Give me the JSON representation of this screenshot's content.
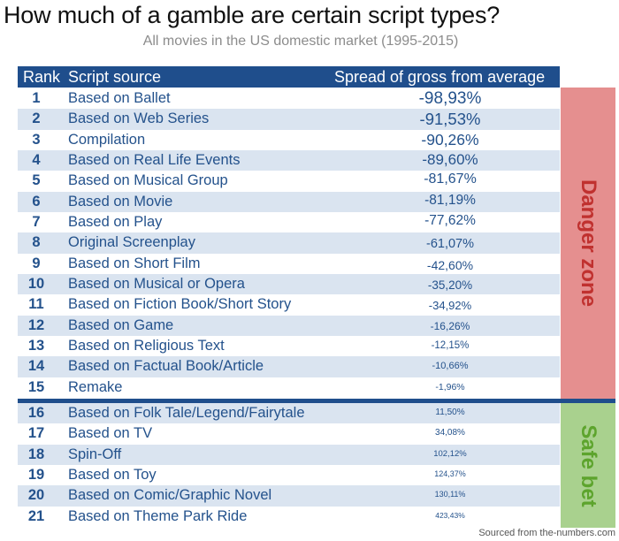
{
  "title": "How much of a gamble are certain script types?",
  "subtitle": "All movies in the US domestic market (1995-2015)",
  "header": {
    "rank": "Rank",
    "source": "Script source",
    "spread": "Spread of gross from average"
  },
  "danger_label": "Danger zone",
  "safe_label": "Safe bet",
  "source_note": "Sourced from the-numbers.com",
  "rows": [
    {
      "rank": "1",
      "source": "Based on Ballet",
      "spread": "-98,93%"
    },
    {
      "rank": "2",
      "source": "Based on Web Series",
      "spread": "-91,53%"
    },
    {
      "rank": "3",
      "source": "Compilation",
      "spread": "-90,26%"
    },
    {
      "rank": "4",
      "source": "Based on Real Life Events",
      "spread": "-89,60%"
    },
    {
      "rank": "5",
      "source": "Based on Musical Group",
      "spread": "-81,67%"
    },
    {
      "rank": "6",
      "source": "Based on Movie",
      "spread": "-81,19%"
    },
    {
      "rank": "7",
      "source": "Based on Play",
      "spread": "-77,62%"
    },
    {
      "rank": "8",
      "source": "Original Screenplay",
      "spread": "-61,07%"
    },
    {
      "rank": "9",
      "source": "Based on Short Film",
      "spread": "-42,60%"
    },
    {
      "rank": "10",
      "source": "Based on Musical or Opera",
      "spread": "-35,20%"
    },
    {
      "rank": "11",
      "source": "Based on Fiction Book/Short Story",
      "spread": "-34,92%"
    },
    {
      "rank": "12",
      "source": "Based on Game",
      "spread": "-16,26%"
    },
    {
      "rank": "13",
      "source": "Based on Religious Text",
      "spread": "-12,15%"
    },
    {
      "rank": "14",
      "source": "Based on Factual Book/Article",
      "spread": "-10,66%"
    },
    {
      "rank": "15",
      "source": "Remake",
      "spread": "-1,96%"
    },
    {
      "rank": "16",
      "source": "Based on Folk Tale/Legend/Fairytale",
      "spread": "11,50%"
    },
    {
      "rank": "17",
      "source": "Based on TV",
      "spread": "34,08%"
    },
    {
      "rank": "18",
      "source": "Spin-Off",
      "spread": "102,12%"
    },
    {
      "rank": "19",
      "source": "Based on Toy",
      "spread": "124,37%"
    },
    {
      "rank": "20",
      "source": "Based on Comic/Graphic Novel",
      "spread": "130,11%"
    },
    {
      "rank": "21",
      "source": "Based on Theme Park Ride",
      "spread": "423,43%"
    }
  ]
}
